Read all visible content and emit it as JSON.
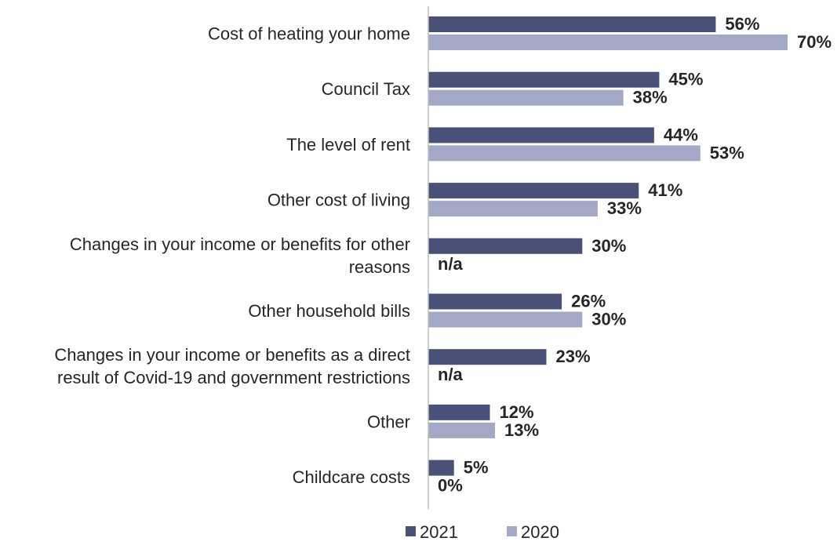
{
  "chart_data": {
    "type": "bar",
    "orientation": "horizontal",
    "categories": [
      "Cost of heating your home",
      "Council Tax",
      "The level of rent",
      "Other cost of living",
      "Changes in your income or benefits for other reasons",
      "Other household bills",
      "Changes in your income or benefits as a direct result of Covid-19 and government restrictions",
      "Other",
      "Childcare costs"
    ],
    "series": [
      {
        "name": "2021",
        "color": "#4a5178",
        "values": [
          56,
          45,
          44,
          41,
          30,
          26,
          23,
          12,
          5
        ],
        "labels": [
          "56%",
          "45%",
          "44%",
          "41%",
          "30%",
          "26%",
          "23%",
          "12%",
          "5%"
        ]
      },
      {
        "name": "2020",
        "color": "#a3a8c6",
        "values": [
          70,
          38,
          53,
          33,
          null,
          30,
          null,
          13,
          0
        ],
        "labels": [
          "70%",
          "38%",
          "53%",
          "33%",
          "n/a",
          "30%",
          "n/a",
          "13%",
          "0%"
        ]
      }
    ],
    "xlim": [
      0,
      70
    ],
    "legend_position": "bottom",
    "grid": false
  }
}
